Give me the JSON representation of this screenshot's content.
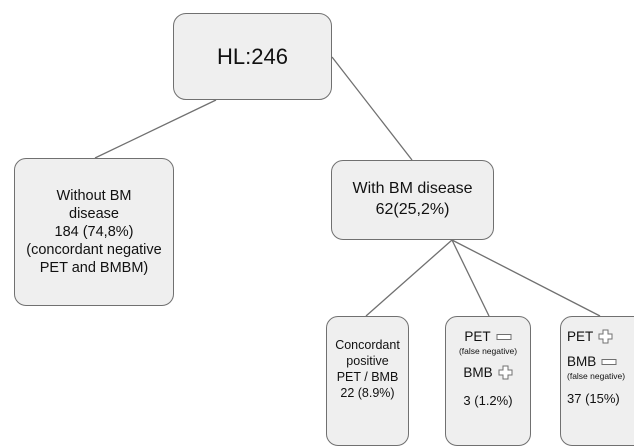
{
  "root": {
    "label": "HL:246"
  },
  "without": {
    "line1": "Without BM",
    "line2": "disease",
    "line3": "184 (74,8%)",
    "line4": "(concordant negative",
    "line5": "PET and BMBM)"
  },
  "with": {
    "line1": "With BM disease",
    "line2": "62(25,2%)"
  },
  "concordant": {
    "line1": "Concordant",
    "line2": "positive",
    "line3": "PET / BMB",
    "line4": "22 (8.9%)"
  },
  "pet_neg_bmb_pos": {
    "pet_label": "PET",
    "pet_note": "(false negative)",
    "bmb_label": "BMB",
    "count": "3 (1.2%)"
  },
  "pet_pos_bmb_neg": {
    "pet_label": "PET",
    "bmb_label": "BMB",
    "bmb_note": "(false negative)",
    "count": "37 (15%)"
  },
  "symbols": {
    "minus": "minus-sign-icon",
    "plus": "plus-sign-icon"
  },
  "colors": {
    "box_fill": "#efefef",
    "box_border": "#707070",
    "connector": "#707070"
  }
}
